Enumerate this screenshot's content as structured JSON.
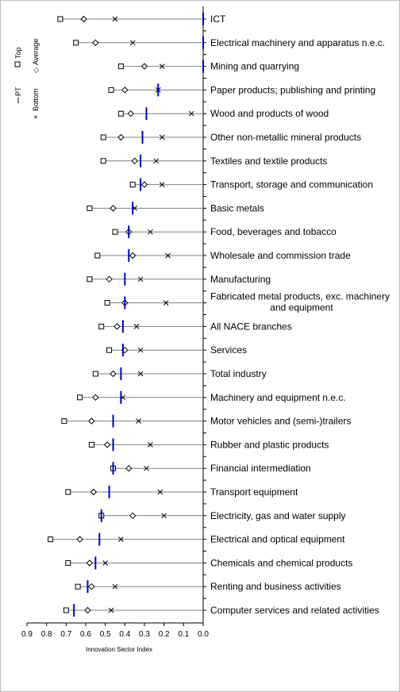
{
  "chart_data": {
    "type": "range-marker",
    "xlabel": "Innovation Sector Index",
    "xlim": [
      0.9,
      0.0
    ],
    "xticks": [
      "0.9",
      "0.8",
      "0.7",
      "0.6",
      "0.5",
      "0.4",
      "0.3",
      "0.2",
      "0.1",
      "0.0"
    ],
    "legend": {
      "pt": "PT",
      "bottom": "Bottom",
      "top": "Top",
      "average": "Average"
    },
    "categories": [
      "ICT",
      "Electrical machinery and apparatus n.e.c.",
      "Mining and quarrying",
      "Paper products; publishing and printing",
      "Wood and products of wood",
      "Other non-metallic mineral products",
      "Textiles and textile products",
      "Transport, storage and communication",
      "Basic metals",
      "Food, beverages and tobacco",
      "Wholesale and commission trade",
      "Manufacturing",
      "Fabricated metal products, exc. machinery and equipment",
      "All NACE branches",
      "Services",
      "Total industry",
      "Machinery and equipment n.e.c.",
      "Motor vehicles and (semi-)trailers",
      "Rubber and plastic products",
      "Financial intermediation",
      "Transport equipment",
      "Electricity, gas and water supply",
      "Electrical and optical equipment",
      "Chemicals and chemical products",
      "Renting and business activities",
      "Computer services and related activities"
    ],
    "series": [
      {
        "name": "Top",
        "marker": "square",
        "values": [
          0.73,
          0.65,
          0.42,
          0.47,
          0.42,
          0.51,
          0.51,
          0.36,
          0.58,
          0.45,
          0.54,
          0.58,
          0.49,
          0.52,
          0.48,
          0.55,
          0.63,
          0.71,
          0.57,
          0.46,
          0.69,
          0.52,
          0.78,
          0.69,
          0.64,
          0.7
        ]
      },
      {
        "name": "Average",
        "marker": "diamond",
        "values": [
          0.61,
          0.55,
          0.3,
          0.4,
          0.37,
          0.42,
          0.35,
          0.3,
          0.46,
          0.38,
          0.36,
          0.48,
          0.4,
          0.44,
          0.4,
          0.46,
          0.55,
          0.57,
          0.49,
          0.38,
          0.56,
          0.36,
          0.63,
          0.58,
          0.57,
          0.59
        ]
      },
      {
        "name": "Bottom",
        "marker": "cross",
        "values": [
          0.45,
          0.36,
          0.21,
          0.23,
          0.06,
          0.21,
          0.24,
          0.21,
          0.35,
          0.27,
          0.18,
          0.32,
          0.19,
          0.34,
          0.32,
          0.32,
          0.41,
          0.33,
          0.27,
          0.29,
          0.22,
          0.2,
          0.42,
          0.5,
          0.45,
          0.47
        ]
      },
      {
        "name": "PT",
        "marker": "vline",
        "color": "#0000cc",
        "values": [
          0.0,
          0.0,
          0.0,
          0.23,
          0.29,
          0.31,
          0.32,
          0.32,
          0.36,
          0.38,
          0.38,
          0.4,
          0.4,
          0.41,
          0.41,
          0.42,
          0.42,
          0.46,
          0.46,
          0.46,
          0.48,
          0.52,
          0.53,
          0.55,
          0.59,
          0.66
        ]
      }
    ]
  }
}
